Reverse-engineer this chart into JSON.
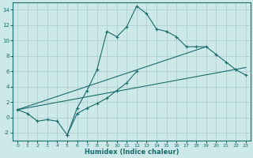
{
  "xlabel": "Humidex (Indice chaleur)",
  "bg_color": "#cce8e8",
  "grid_color": "#aacccc",
  "line_color": "#1a6b6b",
  "xlim": [
    -0.5,
    23.5
  ],
  "ylim": [
    -3,
    15
  ],
  "xticks": [
    0,
    1,
    2,
    3,
    4,
    5,
    6,
    7,
    8,
    9,
    10,
    11,
    12,
    13,
    14,
    15,
    16,
    17,
    18,
    19,
    20,
    21,
    22,
    23
  ],
  "yticks": [
    -2,
    0,
    2,
    4,
    6,
    8,
    10,
    12,
    14
  ],
  "lines": [
    {
      "x": [
        0,
        1,
        2,
        3,
        4,
        5,
        6,
        7,
        8,
        9,
        10,
        11,
        12,
        13,
        14,
        15,
        16,
        17,
        18,
        19,
        20,
        21,
        22,
        23
      ],
      "y": [
        1,
        0.5,
        -0.5,
        -0.3,
        -0.5,
        -2.3,
        1.2,
        3.5,
        6.2,
        11.2,
        10.5,
        11.8,
        14.5,
        13.5,
        11.5,
        11.2,
        10.5,
        9.2,
        9.2,
        9.2,
        8.2,
        7.2,
        6.2,
        5.5
      ],
      "has_markers": true
    },
    {
      "x": [
        0,
        23
      ],
      "y": [
        1,
        6.5
      ],
      "has_markers": false
    },
    {
      "x": [
        0,
        19
      ],
      "y": [
        1,
        9.2
      ],
      "has_markers": false
    },
    {
      "x": [
        5,
        6,
        7,
        8,
        9,
        10,
        11,
        12
      ],
      "y": [
        -2.3,
        0.5,
        1.2,
        1.8,
        2.5,
        3.5,
        4.5,
        6.0
      ],
      "has_markers": true
    }
  ]
}
